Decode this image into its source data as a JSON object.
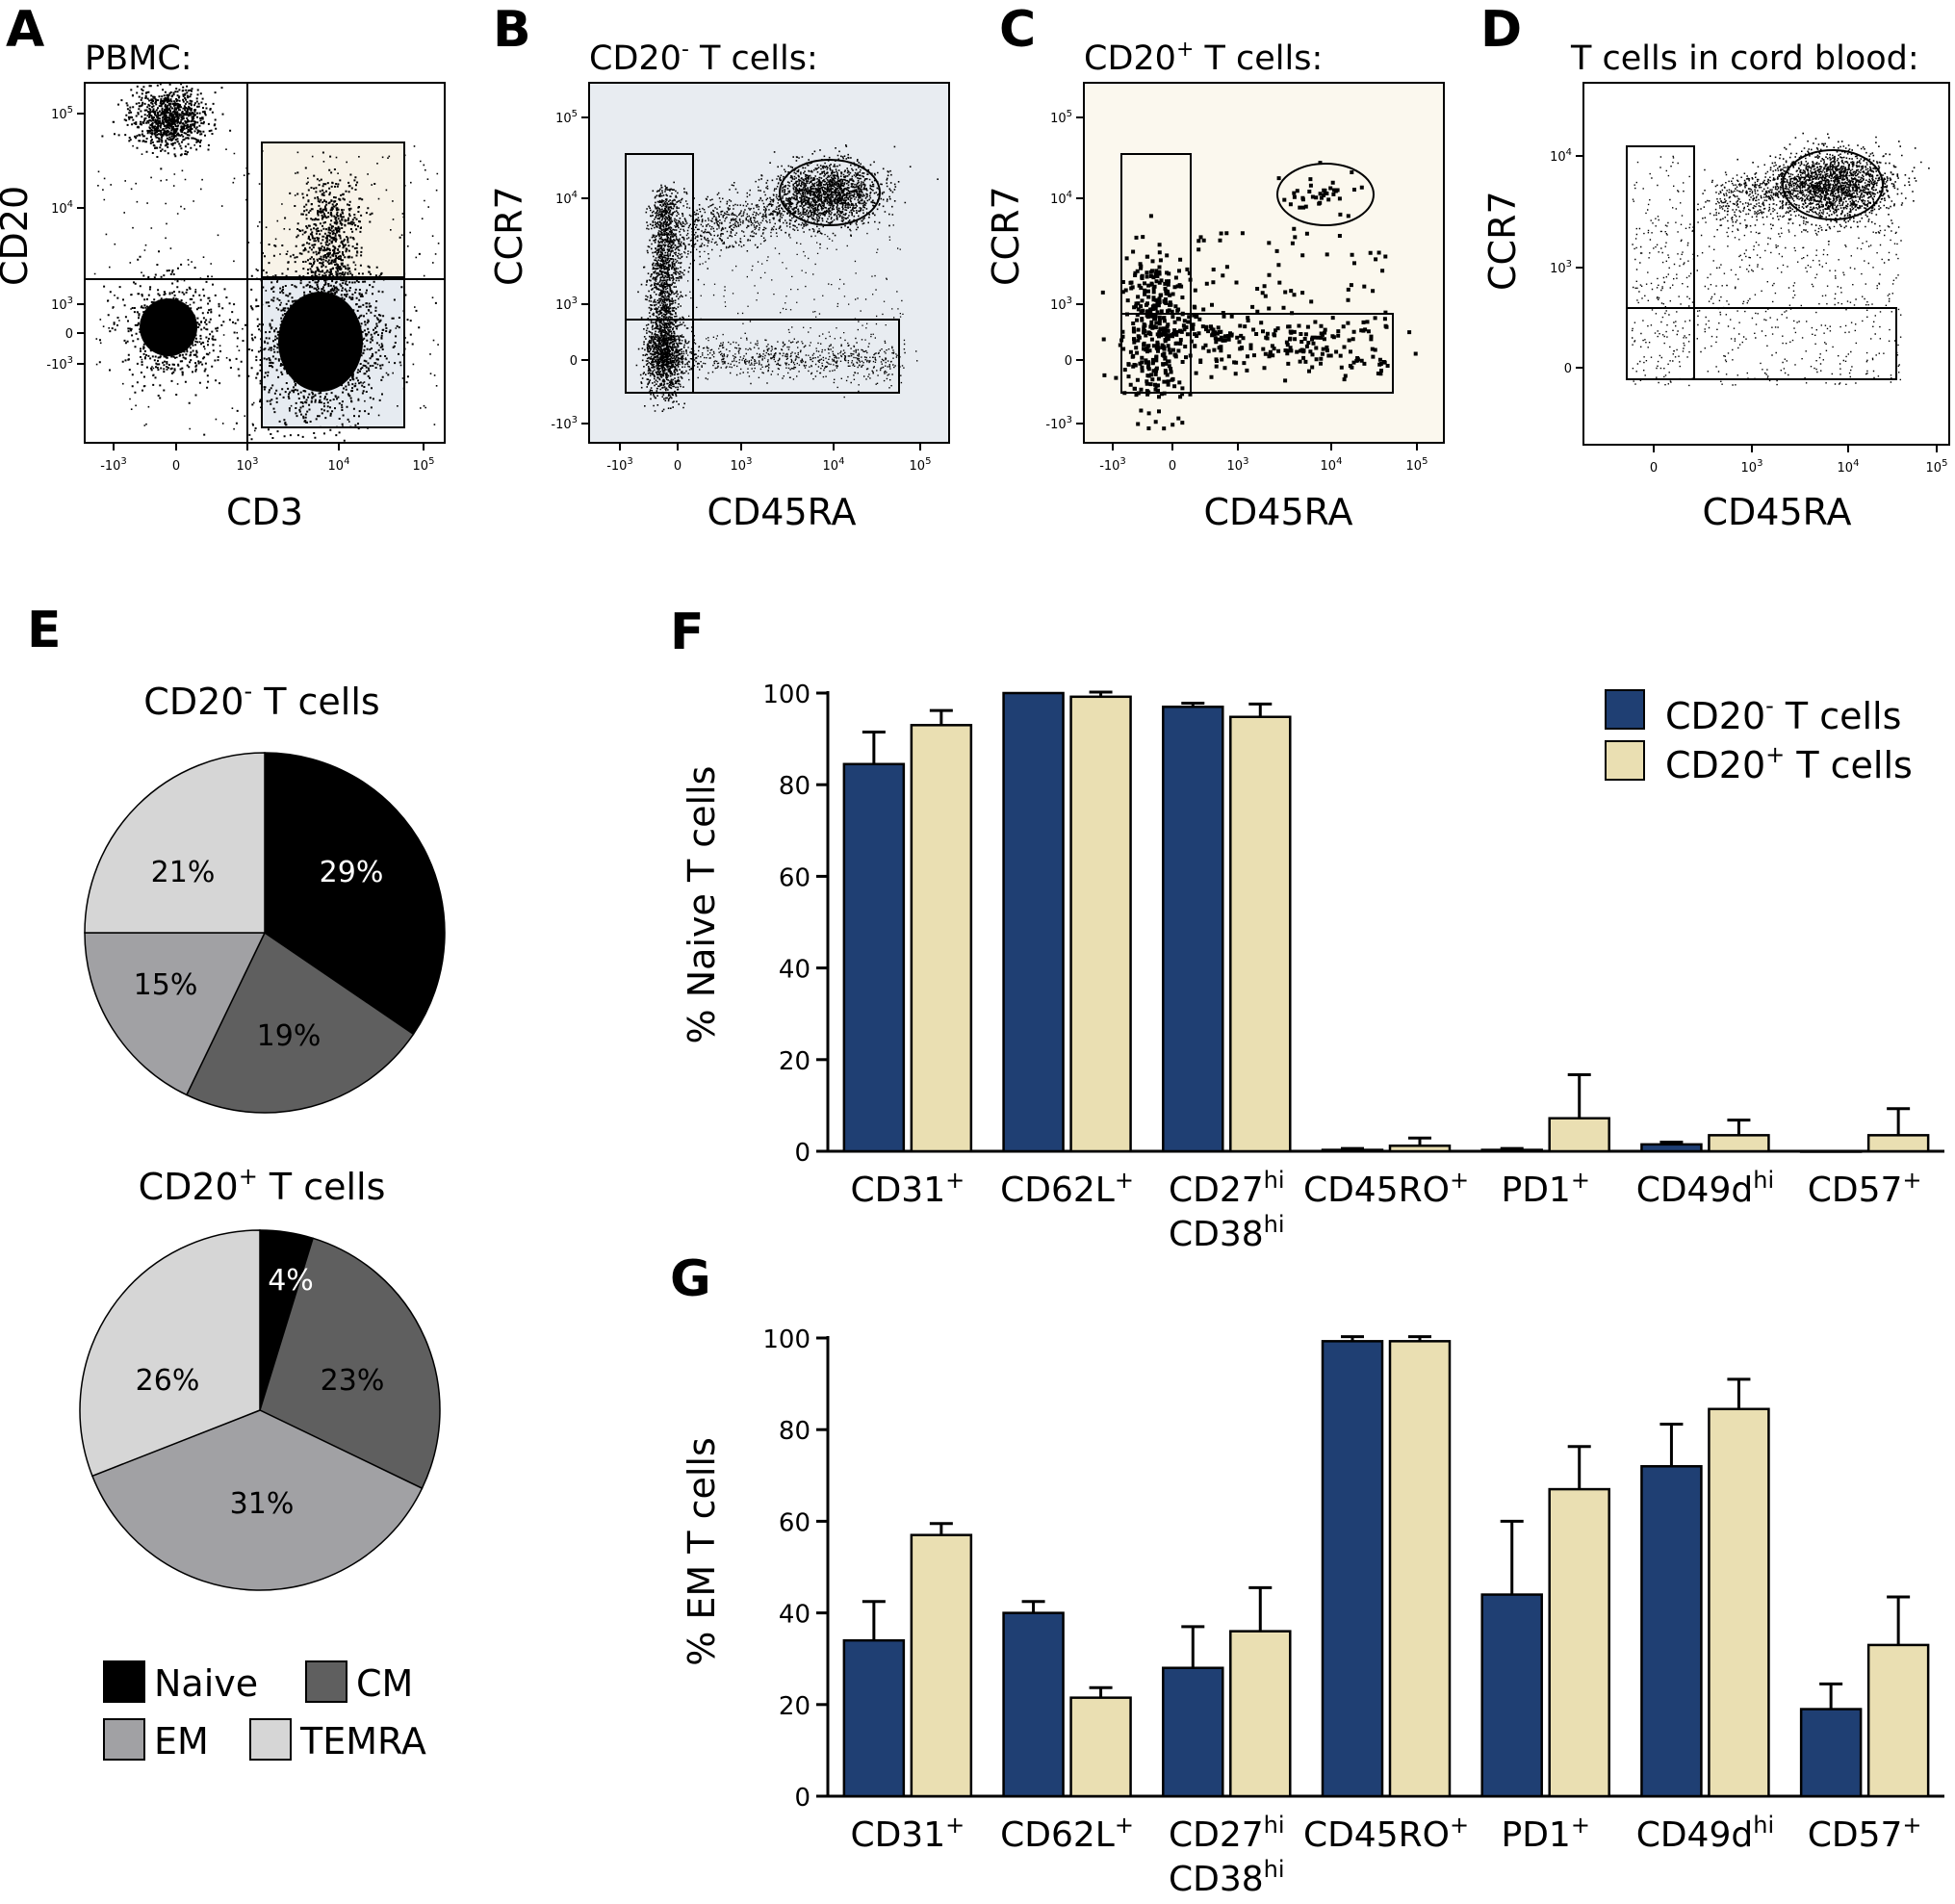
{
  "colors": {
    "navy": "#1f3f73",
    "beige": "#eadfb2",
    "panel_a_cream": "#f8f3e8",
    "panel_a_blue": "#e6ebf1",
    "panel_b_bg": "#e8ecf1",
    "panel_c_bg": "#fbf8ee",
    "naive": "#000000",
    "cm": "#5f5f5f",
    "em": "#a1a1a4",
    "temra": "#d6d6d6"
  },
  "panels": {
    "A": {
      "letter": "A",
      "title": "PBMC:",
      "xlabel": "CD3",
      "ylabel": "CD20",
      "xticks": [
        "-10^3",
        "0",
        "10^3",
        "10^4",
        "10^5"
      ],
      "yticks": [
        "10^5",
        "10^4",
        "10^3",
        "0",
        "-10^3"
      ]
    },
    "B": {
      "letter": "B",
      "title_main": "CD20",
      "title_sup": "-",
      "title_rest": " T cells:",
      "xlabel": "CD45RA",
      "ylabel": "CCR7",
      "xticks": [
        "-10^3",
        "0",
        "10^3",
        "10^4",
        "10^5"
      ],
      "yticks": [
        "10^5",
        "10^4",
        "10^3",
        "0",
        "-10^3"
      ]
    },
    "C": {
      "letter": "C",
      "title_main": "CD20",
      "title_sup": "+",
      "title_rest": " T cells:",
      "xlabel": "CD45RA",
      "ylabel": "CCR7",
      "xticks": [
        "-10^3",
        "0",
        "10^3",
        "10^4",
        "10^5"
      ],
      "yticks": [
        "10^5",
        "10^4",
        "10^3",
        "0",
        "-10^3"
      ]
    },
    "D": {
      "letter": "D",
      "title": "T cells in cord blood:",
      "xlabel": "CD45RA",
      "ylabel": "CCR7",
      "xticks": [
        "0",
        "10^3",
        "10^4",
        "10^5"
      ],
      "yticks": [
        "10^4",
        "10^3",
        "0"
      ]
    },
    "E": {
      "letter": "E"
    },
    "F": {
      "letter": "F"
    },
    "G": {
      "letter": "G"
    }
  },
  "chart_data": [
    {
      "id": "E1",
      "type": "pie",
      "title_main": "CD20",
      "title_sup": "-",
      "title_rest": " T cells",
      "slices": [
        {
          "label": "Naive",
          "value": 29,
          "text": "29%"
        },
        {
          "label": "CM",
          "value": 19,
          "text": "19%"
        },
        {
          "label": "EM",
          "value": 15,
          "text": "15%"
        },
        {
          "label": "TEMRA",
          "value": 21,
          "text": "21%"
        }
      ]
    },
    {
      "id": "E2",
      "type": "pie",
      "title_main": "CD20",
      "title_sup": "+",
      "title_rest": " T cells",
      "slices": [
        {
          "label": "Naive",
          "value": 4,
          "text": "4%"
        },
        {
          "label": "CM",
          "value": 23,
          "text": "23%"
        },
        {
          "label": "EM",
          "value": 31,
          "text": "31%"
        },
        {
          "label": "TEMRA",
          "value": 26,
          "text": "26%"
        }
      ],
      "legend": [
        "Naive",
        "CM",
        "EM",
        "TEMRA"
      ]
    },
    {
      "id": "F",
      "type": "bar",
      "ylabel": "% Naive T cells",
      "ylim": [
        0,
        100
      ],
      "yticks": [
        0,
        20,
        40,
        60,
        80,
        100
      ],
      "categories": [
        {
          "main": "CD31",
          "sup": "+"
        },
        {
          "main": "CD62L",
          "sup": "+"
        },
        {
          "main": "CD27",
          "sup": "hi",
          "line2": "CD38",
          "sup2": "hi"
        },
        {
          "main": "CD45RO",
          "sup": "+"
        },
        {
          "main": "PD1",
          "sup": "+"
        },
        {
          "main": "CD49d",
          "sup": "hi"
        },
        {
          "main": "CD57",
          "sup": "+"
        }
      ],
      "series": [
        {
          "name_main": "CD20",
          "name_sup": "-",
          "name_rest": " T cells",
          "values": [
            84.5,
            100,
            97,
            0.3,
            0.3,
            1.5,
            0
          ],
          "errors": [
            7,
            0,
            0.8,
            0.3,
            0.3,
            0.5,
            0
          ]
        },
        {
          "name_main": "CD20",
          "name_sup": "+",
          "name_rest": " T cells",
          "values": [
            93,
            99.2,
            94.8,
            1.2,
            7.2,
            3.5,
            3.5
          ],
          "errors": [
            3.2,
            1,
            2.8,
            1.7,
            9.5,
            3.3,
            5.8
          ]
        }
      ]
    },
    {
      "id": "G",
      "type": "bar",
      "ylabel": "% EM T cells",
      "ylim": [
        0,
        100
      ],
      "yticks": [
        0,
        20,
        40,
        60,
        80,
        100
      ],
      "categories": [
        {
          "main": "CD31",
          "sup": "+"
        },
        {
          "main": "CD62L",
          "sup": "+"
        },
        {
          "main": "CD27",
          "sup": "hi",
          "line2": "CD38",
          "sup2": "hi"
        },
        {
          "main": "CD45RO",
          "sup": "+"
        },
        {
          "main": "PD1",
          "sup": "+"
        },
        {
          "main": "CD49d",
          "sup": "hi"
        },
        {
          "main": "CD57",
          "sup": "+"
        }
      ],
      "series": [
        {
          "name_main": "CD20",
          "name_sup": "-",
          "name_rest": " T cells",
          "values": [
            34,
            40,
            28,
            99.3,
            44,
            72,
            19
          ],
          "errors": [
            8.5,
            2.5,
            9,
            1,
            16,
            9.2,
            5.5
          ]
        },
        {
          "name_main": "CD20",
          "name_sup": "+",
          "name_rest": " T cells",
          "values": [
            57,
            21.5,
            36,
            99.3,
            67,
            84.5,
            33
          ],
          "errors": [
            2.5,
            2.2,
            9.5,
            1,
            9.3,
            6.5,
            10.5
          ]
        }
      ]
    }
  ]
}
